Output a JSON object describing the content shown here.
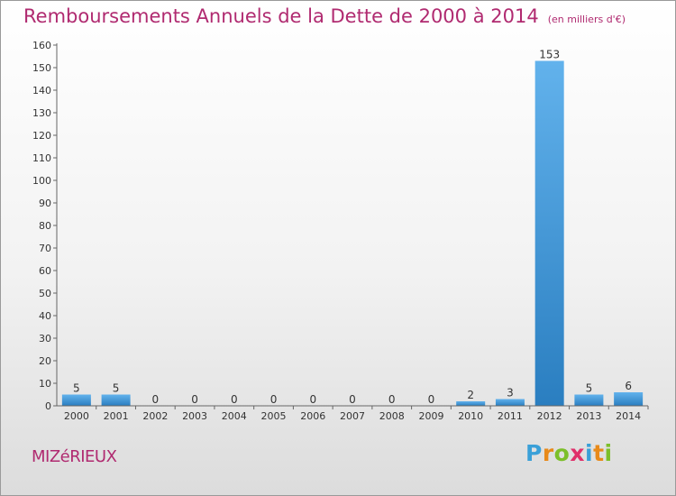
{
  "title": "Remboursements Annuels de la Dette de 2000 à 2014",
  "unit": "(en milliers d'€)",
  "commune": "MIZéRIEUX",
  "brand": {
    "letters": [
      "P",
      "r",
      "o",
      "x",
      "i",
      "t",
      "i"
    ],
    "colors": [
      "#3aa0d8",
      "#e88a1a",
      "#7cbf2a",
      "#e0306a",
      "#3aa0d8",
      "#e88a1a",
      "#7cbf2a"
    ]
  },
  "colors": {
    "bar_top": "#62b2ec",
    "bar_bottom": "#2a7ec0",
    "title": "#b02a70"
  },
  "chart_data": {
    "type": "bar",
    "categories": [
      "2000",
      "2001",
      "2002",
      "2003",
      "2004",
      "2005",
      "2006",
      "2007",
      "2008",
      "2009",
      "2010",
      "2011",
      "2012",
      "2013",
      "2014"
    ],
    "values": [
      5,
      5,
      0,
      0,
      0,
      0,
      0,
      0,
      0,
      0,
      2,
      3,
      153,
      5,
      6
    ],
    "ylim": [
      0,
      160
    ],
    "yticks": [
      0,
      10,
      20,
      30,
      40,
      50,
      60,
      70,
      80,
      90,
      100,
      110,
      120,
      130,
      140,
      150,
      160
    ],
    "grid": false,
    "data_labels": true
  }
}
